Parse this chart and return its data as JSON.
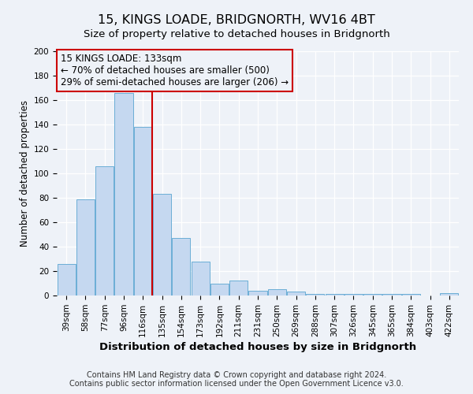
{
  "title": "15, KINGS LOADE, BRIDGNORTH, WV16 4BT",
  "subtitle": "Size of property relative to detached houses in Bridgnorth",
  "xlabel": "Distribution of detached houses by size in Bridgnorth",
  "ylabel": "Number of detached properties",
  "bar_labels": [
    "39sqm",
    "58sqm",
    "77sqm",
    "96sqm",
    "116sqm",
    "135sqm",
    "154sqm",
    "173sqm",
    "192sqm",
    "211sqm",
    "231sqm",
    "250sqm",
    "269sqm",
    "288sqm",
    "307sqm",
    "326sqm",
    "345sqm",
    "365sqm",
    "384sqm",
    "403sqm",
    "422sqm"
  ],
  "bar_values": [
    26,
    79,
    106,
    166,
    138,
    83,
    47,
    28,
    10,
    12,
    4,
    5,
    3,
    1,
    1,
    1,
    1,
    1,
    1,
    0,
    2
  ],
  "bar_color": "#c5d8f0",
  "bar_edge_color": "#6baed6",
  "ylim": [
    0,
    200
  ],
  "yticks": [
    0,
    20,
    40,
    60,
    80,
    100,
    120,
    140,
    160,
    180,
    200
  ],
  "vline_index": 5,
  "vline_color": "#cc0000",
  "annotation_title": "15 KINGS LOADE: 133sqm",
  "annotation_line1": "← 70% of detached houses are smaller (500)",
  "annotation_line2": "29% of semi-detached houses are larger (206) →",
  "annotation_box_color": "#cc0000",
  "footer1": "Contains HM Land Registry data © Crown copyright and database right 2024.",
  "footer2": "Contains public sector information licensed under the Open Government Licence v3.0.",
  "background_color": "#eef2f8",
  "grid_color": "#ffffff",
  "title_fontsize": 11.5,
  "subtitle_fontsize": 9.5,
  "xlabel_fontsize": 9.5,
  "ylabel_fontsize": 8.5,
  "tick_fontsize": 7.5,
  "annotation_fontsize": 8.5,
  "footer_fontsize": 7.0
}
